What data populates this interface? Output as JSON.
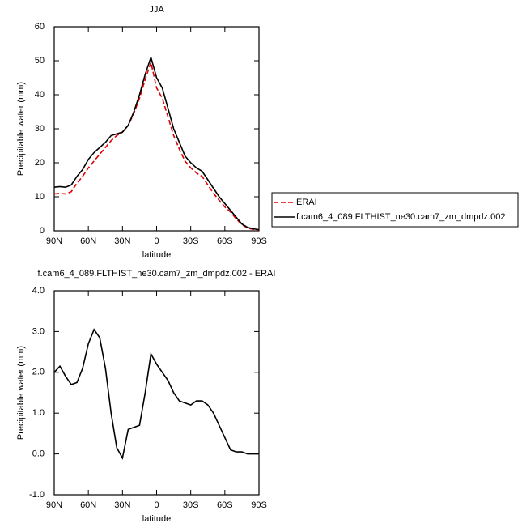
{
  "chart_data": [
    {
      "type": "line",
      "title": "JJA",
      "xlabel": "latitude",
      "ylabel": "Precipitable water (mm)",
      "x": [
        90,
        85,
        80,
        75,
        70,
        65,
        60,
        55,
        50,
        45,
        40,
        35,
        30,
        25,
        20,
        15,
        10,
        5,
        0,
        -5,
        -10,
        -15,
        -20,
        -25,
        -30,
        -35,
        -40,
        -45,
        -50,
        -55,
        -60,
        -65,
        -70,
        -75,
        -80,
        -85,
        -90
      ],
      "series": [
        {
          "name": "ERAI",
          "color": "#e00000",
          "style": "dashed",
          "values": [
            10.8,
            11,
            10.8,
            11.5,
            14,
            16,
            18.5,
            20.5,
            22.5,
            24.5,
            26.5,
            28,
            29,
            31,
            34.5,
            39,
            44.5,
            49.5,
            42,
            39,
            33.5,
            28,
            24,
            20.5,
            18.5,
            17,
            16,
            13.5,
            11,
            9,
            7,
            5.5,
            3.5,
            1.8,
            0.8,
            0.4,
            0.2
          ]
        },
        {
          "name": "f.cam6_4_089.FLTHIST_ne30.cam7_zm_dmpdz.002",
          "color": "#000000",
          "style": "solid",
          "values": [
            12.8,
            13,
            12.8,
            13.5,
            16,
            18,
            21,
            23,
            24.5,
            26,
            28,
            28.5,
            29,
            31,
            35,
            40,
            46,
            51,
            45,
            42,
            36,
            30,
            26,
            22,
            20,
            18.5,
            17.5,
            15,
            12.5,
            10,
            8,
            6,
            4,
            2,
            1,
            0.6,
            0.3
          ]
        }
      ],
      "xlim": [
        90,
        -90
      ],
      "xticks": [
        {
          "value": 90,
          "label": "90N"
        },
        {
          "value": 60,
          "label": "60N"
        },
        {
          "value": 30,
          "label": "30N"
        },
        0,
        {
          "value": -30,
          "label": "30S"
        },
        {
          "value": -60,
          "label": "60S"
        },
        {
          "value": -90,
          "label": "90S"
        }
      ],
      "ylim": [
        0,
        60
      ],
      "yticks": [
        0,
        10,
        20,
        30,
        40,
        50,
        60
      ],
      "legend": true
    },
    {
      "type": "line",
      "title": "f.cam6_4_089.FLTHIST_ne30.cam7_zm_dmpdz.002 - ERAI",
      "xlabel": "latitude",
      "ylabel": "Precipitable water (mm)",
      "x": [
        90,
        85,
        80,
        75,
        70,
        65,
        60,
        55,
        50,
        45,
        40,
        35,
        30,
        25,
        20,
        15,
        10,
        5,
        0,
        -5,
        -10,
        -15,
        -20,
        -25,
        -30,
        -35,
        -40,
        -45,
        -50,
        -55,
        -60,
        -65,
        -70,
        -75,
        -80,
        -85,
        -90
      ],
      "values": [
        2.0,
        2.15,
        1.9,
        1.7,
        1.75,
        2.1,
        2.7,
        3.05,
        2.85,
        2.1,
        1.0,
        0.15,
        -0.1,
        0.6,
        0.65,
        0.7,
        1.5,
        2.45,
        2.2,
        2.0,
        1.8,
        1.5,
        1.3,
        1.25,
        1.2,
        1.3,
        1.3,
        1.2,
        1.0,
        0.7,
        0.4,
        0.1,
        0.05,
        0.05,
        0.0,
        0.0,
        0.0
      ],
      "color": "#000000",
      "xlim": [
        90,
        -90
      ],
      "xticks": [
        {
          "value": 90,
          "label": "90N"
        },
        {
          "value": 60,
          "label": "60N"
        },
        {
          "value": 30,
          "label": "30N"
        },
        0,
        {
          "value": -30,
          "label": "30S"
        },
        {
          "value": -60,
          "label": "60S"
        },
        {
          "value": -90,
          "label": "90S"
        }
      ],
      "ylim": [
        -1,
        4
      ],
      "yticks": [
        {
          "value": -1,
          "label": "-1.0"
        },
        {
          "value": 0,
          "label": "0.0"
        },
        {
          "value": 1,
          "label": "1.0"
        },
        {
          "value": 2,
          "label": "2.0"
        },
        {
          "value": 3,
          "label": "3.0"
        },
        {
          "value": 4,
          "label": "4.0"
        }
      ]
    }
  ]
}
